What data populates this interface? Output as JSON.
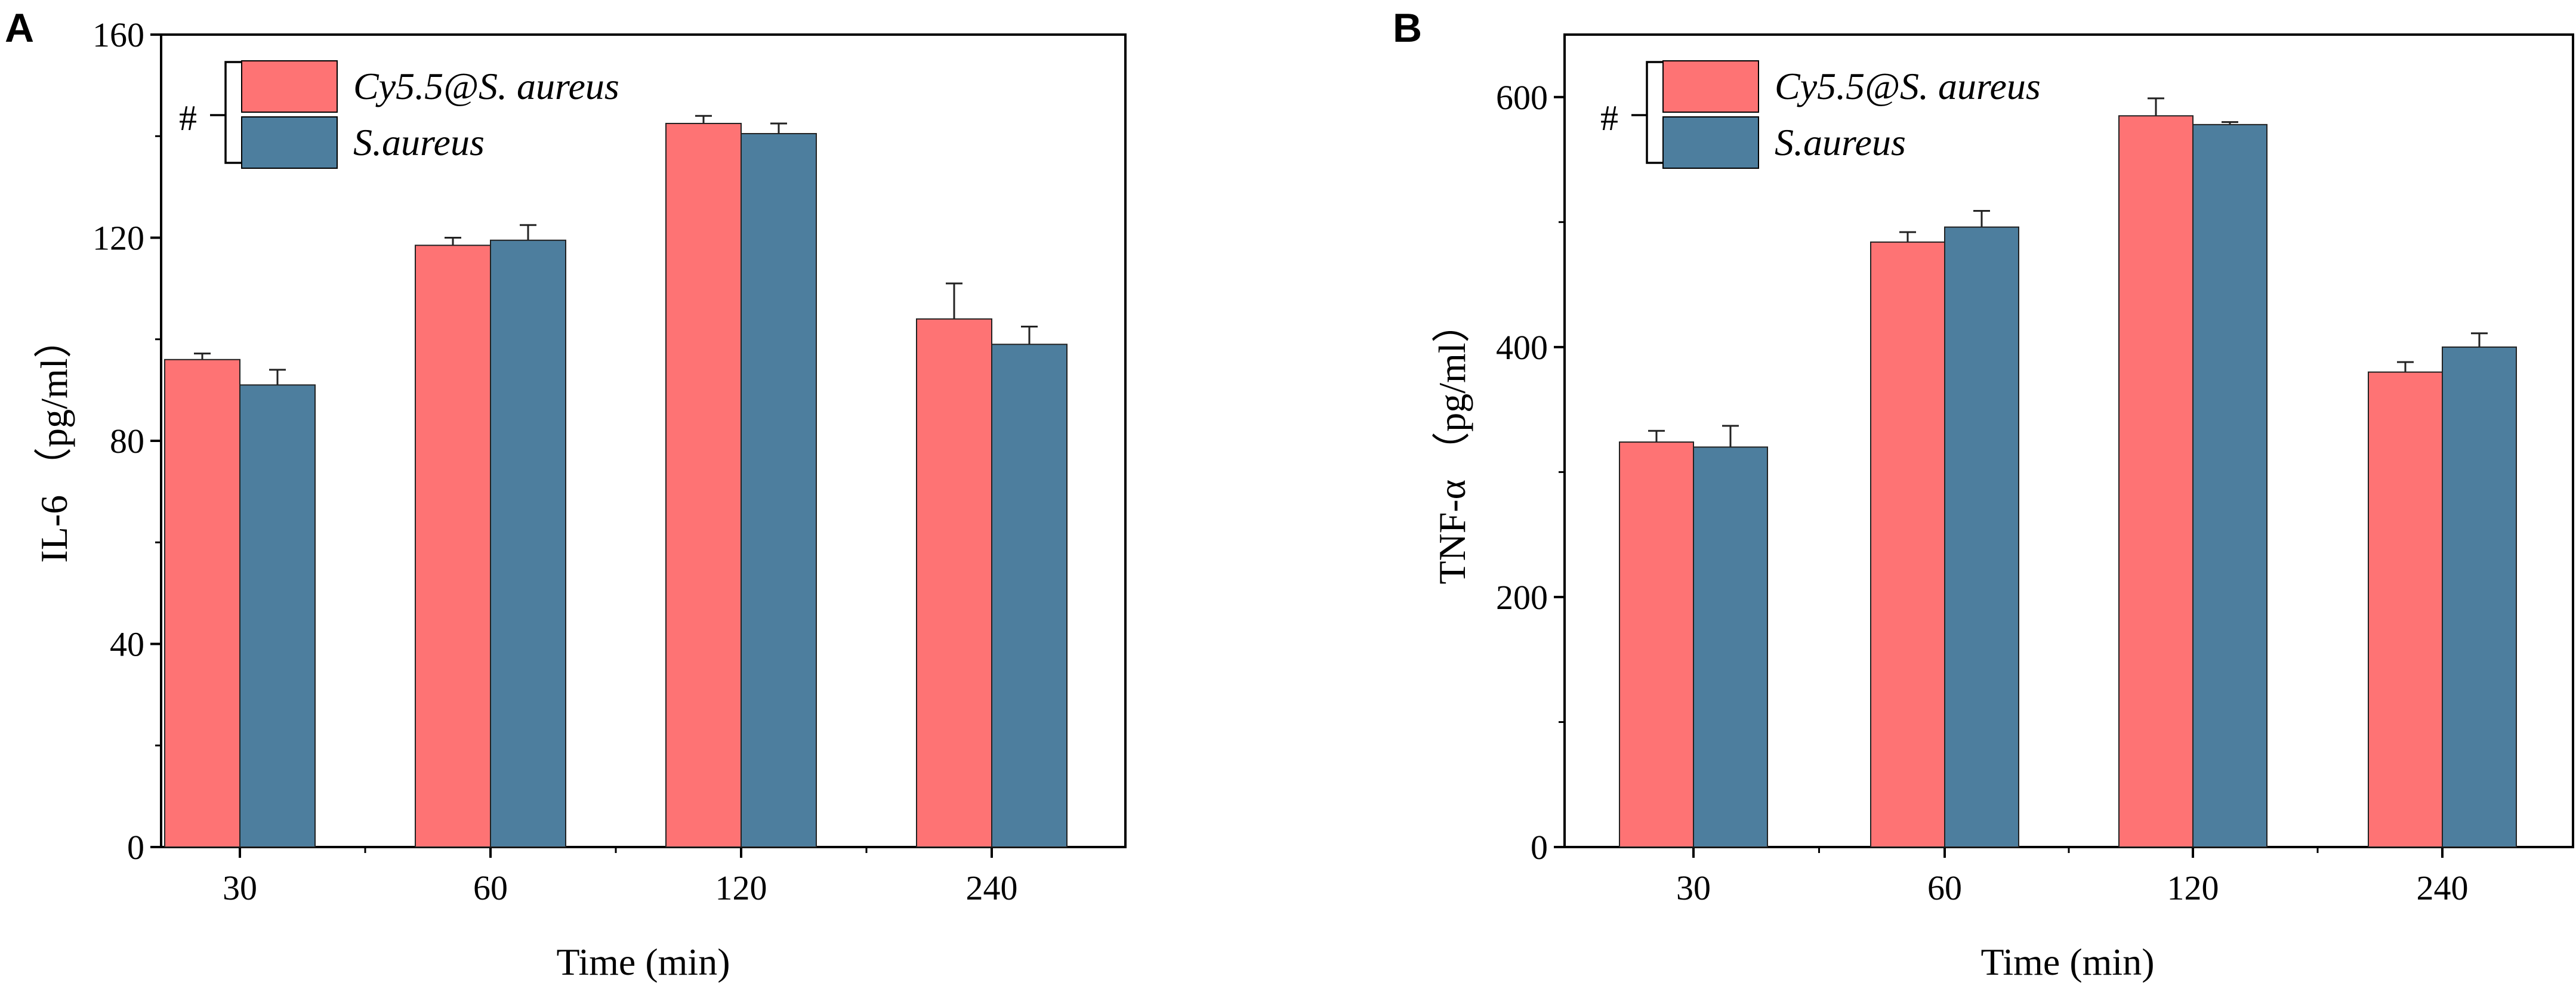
{
  "chart_data": [
    {
      "panel": "A",
      "type": "bar",
      "categories": [
        "30",
        "60",
        "120",
        "240"
      ],
      "series": [
        {
          "name": "Cy5.5@S. aureus",
          "color": "#fe7374",
          "values": [
            96,
            118.5,
            142.5,
            104
          ],
          "errors": [
            1.2,
            1.5,
            1.5,
            7
          ]
        },
        {
          "name": "S.aureus",
          "color": "#4d7e9e",
          "values": [
            91,
            119.5,
            140.5,
            99
          ],
          "errors": [
            3,
            3,
            2,
            3.5
          ]
        }
      ],
      "xlabel": "Time (min)",
      "ylabel": "IL-6 （pg/ml）",
      "ylim": [
        0,
        160
      ],
      "yticks": [
        0,
        40,
        80,
        120,
        160
      ],
      "legend_marker": "#",
      "legend_position": "top-left"
    },
    {
      "panel": "B",
      "type": "bar",
      "categories": [
        "30",
        "60",
        "120",
        "240"
      ],
      "series": [
        {
          "name": "Cy5.5@S. aureus",
          "color": "#fe7374",
          "values": [
            324,
            484,
            585,
            380
          ],
          "errors": [
            9,
            8,
            14,
            8
          ]
        },
        {
          "name": "S.aureus",
          "color": "#4d7e9e",
          "values": [
            320,
            496,
            578,
            400
          ],
          "errors": [
            17,
            13,
            2,
            11
          ]
        }
      ],
      "xlabel": "Time (min)",
      "ylabel": "TNF-α （pg/ml）",
      "ylim": [
        0,
        650
      ],
      "yticks": [
        0,
        200,
        400,
        600
      ],
      "legend_marker": "#",
      "legend_position": "top-left"
    }
  ]
}
